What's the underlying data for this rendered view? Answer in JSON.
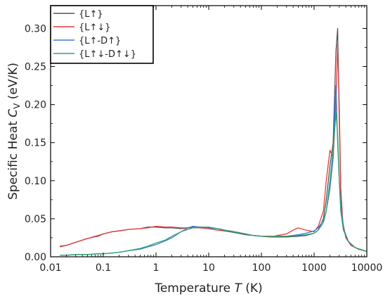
{
  "chart_data": {
    "type": "line",
    "title": "",
    "xlabel": "Temperature T (K)",
    "ylabel": "Specific Heat C_V (eV/K)",
    "xlabel_parts": {
      "main": "Temperature ",
      "italic": "T",
      "unit": " (K)"
    },
    "ylabel_parts": {
      "main": "Specific Heat ",
      "italic": "C",
      "sub": "V",
      "unit": " (eV/K)"
    },
    "xscale": "log",
    "xlim": [
      0.01,
      10000
    ],
    "ylim": [
      0.0,
      0.33
    ],
    "xticks": [
      0.01,
      0.1,
      1,
      10,
      100,
      1000,
      10000
    ],
    "xtick_labels": [
      "0.01",
      "0.1",
      "1",
      "10",
      "100",
      "1000",
      "10000"
    ],
    "yticks": [
      0.0,
      0.05,
      0.1,
      0.15,
      0.2,
      0.25,
      0.3
    ],
    "ytick_labels": [
      "0.00",
      "0.05",
      "0.10",
      "0.15",
      "0.20",
      "0.25",
      "0.30"
    ],
    "grid": false,
    "legend_position": "top-left",
    "series": [
      {
        "name": "{L↑}",
        "color": "#555555",
        "x": [
          0.015,
          0.02,
          0.03,
          0.05,
          0.08,
          0.1,
          0.15,
          0.2,
          0.3,
          0.5,
          0.7,
          1,
          1.5,
          2,
          3,
          5,
          7,
          10,
          15,
          20,
          30,
          50,
          70,
          100,
          150,
          200,
          300,
          500,
          700,
          1000,
          1200,
          1500,
          1700,
          2000,
          2300,
          2600,
          2800,
          3000,
          3200,
          3500,
          4000,
          5000,
          7000,
          10000
        ],
        "y": [
          0.014,
          0.015,
          0.019,
          0.024,
          0.028,
          0.03,
          0.033,
          0.034,
          0.036,
          0.037,
          0.039,
          0.039,
          0.038,
          0.038,
          0.037,
          0.039,
          0.038,
          0.037,
          0.035,
          0.034,
          0.032,
          0.029,
          0.028,
          0.027,
          0.026,
          0.026,
          0.026,
          0.027,
          0.028,
          0.031,
          0.035,
          0.05,
          0.075,
          0.12,
          0.15,
          0.27,
          0.3,
          0.18,
          0.09,
          0.045,
          0.025,
          0.015,
          0.01,
          0.007
        ]
      },
      {
        "name": "{L↑↓}",
        "color": "#e8393f",
        "x": [
          0.015,
          0.02,
          0.03,
          0.05,
          0.08,
          0.1,
          0.15,
          0.2,
          0.3,
          0.5,
          0.7,
          1,
          1.5,
          2,
          3,
          5,
          7,
          10,
          15,
          20,
          30,
          50,
          70,
          100,
          150,
          200,
          300,
          400,
          500,
          700,
          1000,
          1200,
          1500,
          1700,
          2000,
          2300,
          2600,
          2800,
          3000,
          3200,
          3500,
          4000,
          5000,
          7000,
          10000
        ],
        "y": [
          0.013,
          0.015,
          0.019,
          0.024,
          0.027,
          0.03,
          0.033,
          0.034,
          0.036,
          0.037,
          0.038,
          0.04,
          0.039,
          0.039,
          0.038,
          0.038,
          0.038,
          0.037,
          0.035,
          0.035,
          0.033,
          0.03,
          0.028,
          0.027,
          0.026,
          0.028,
          0.03,
          0.035,
          0.038,
          0.035,
          0.033,
          0.04,
          0.06,
          0.1,
          0.14,
          0.13,
          0.2,
          0.28,
          0.2,
          0.09,
          0.045,
          0.025,
          0.015,
          0.01,
          0.007
        ]
      },
      {
        "name": "{L↑-D↑}",
        "color": "#3a78d8",
        "x": [
          0.015,
          0.02,
          0.03,
          0.05,
          0.08,
          0.1,
          0.15,
          0.2,
          0.3,
          0.5,
          0.7,
          1,
          1.5,
          2,
          3,
          4,
          5,
          7,
          10,
          15,
          20,
          30,
          50,
          70,
          100,
          150,
          200,
          300,
          500,
          700,
          1000,
          1200,
          1500,
          1700,
          2000,
          2300,
          2500,
          2600,
          2800,
          3000,
          3300,
          3700,
          4500,
          6000,
          10000
        ],
        "y": [
          0.002,
          0.002,
          0.003,
          0.003,
          0.004,
          0.004,
          0.005,
          0.006,
          0.008,
          0.01,
          0.013,
          0.016,
          0.021,
          0.025,
          0.033,
          0.038,
          0.04,
          0.039,
          0.038,
          0.037,
          0.035,
          0.033,
          0.03,
          0.028,
          0.027,
          0.027,
          0.027,
          0.027,
          0.029,
          0.031,
          0.034,
          0.038,
          0.048,
          0.06,
          0.09,
          0.13,
          0.2,
          0.225,
          0.15,
          0.1,
          0.06,
          0.035,
          0.02,
          0.012,
          0.007
        ]
      },
      {
        "name": "{L↑↓-D↑↓}",
        "color": "#2fa36b",
        "x": [
          0.015,
          0.02,
          0.03,
          0.05,
          0.08,
          0.1,
          0.15,
          0.2,
          0.3,
          0.5,
          0.7,
          1,
          1.5,
          2,
          3,
          4,
          5,
          7,
          10,
          15,
          20,
          30,
          50,
          70,
          100,
          150,
          200,
          300,
          500,
          700,
          1000,
          1200,
          1500,
          1700,
          2000,
          2300,
          2600,
          2800,
          3000,
          3200,
          3600,
          4500,
          6000,
          10000
        ],
        "y": [
          0.002,
          0.002,
          0.003,
          0.003,
          0.004,
          0.004,
          0.005,
          0.006,
          0.008,
          0.011,
          0.014,
          0.018,
          0.022,
          0.027,
          0.033,
          0.036,
          0.038,
          0.039,
          0.039,
          0.037,
          0.035,
          0.033,
          0.03,
          0.028,
          0.027,
          0.027,
          0.027,
          0.027,
          0.028,
          0.029,
          0.031,
          0.035,
          0.045,
          0.06,
          0.1,
          0.14,
          0.19,
          0.16,
          0.1,
          0.06,
          0.035,
          0.02,
          0.012,
          0.007
        ]
      }
    ]
  }
}
